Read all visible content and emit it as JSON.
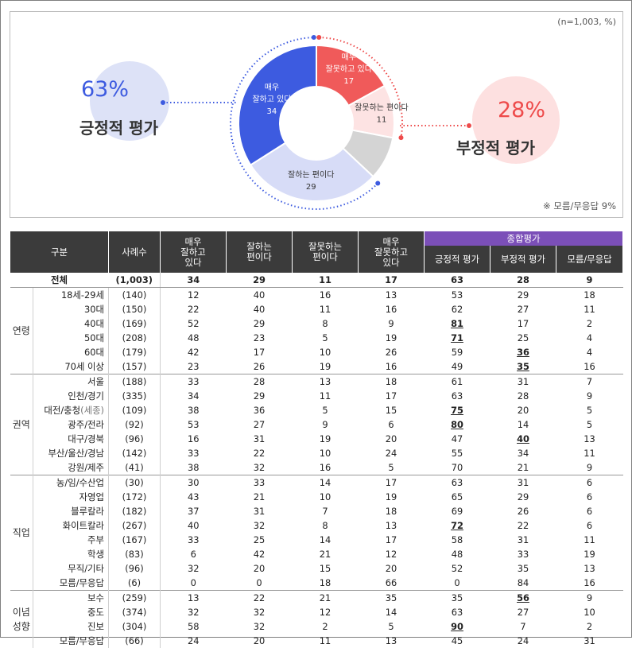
{
  "chart_data": [
    {
      "type": "pie",
      "categories": [
        "매우 잘못하고 있다",
        "잘못하는 편이다",
        "모름/무응답",
        "잘하는 편이다",
        "매우 잘하고 있다"
      ],
      "values": [
        17,
        11,
        9,
        29,
        34
      ],
      "slice_labels": [
        {
          "lines": [
            "매우",
            "잘못하고 있다",
            "17"
          ]
        },
        {
          "lines": [
            "잘못하는 편이다",
            "11"
          ]
        },
        {
          "lines": []
        },
        {
          "lines": [
            "잘하는 편이다",
            "29"
          ]
        },
        {
          "lines": [
            "매우",
            "잘하고 있다",
            "34"
          ]
        }
      ],
      "colors": [
        "#f05a5a",
        "#fde3e3",
        "#d4d4d4",
        "#d7dcf7",
        "#3d5be0"
      ],
      "summary": {
        "positive": {
          "pct": "63%",
          "label": "긍정적 평가",
          "color": "#3d5be0",
          "bubble": "#dde2f7"
        },
        "negative": {
          "pct": "28%",
          "label": "부정적 평가",
          "color": "#ee4b4b",
          "bubble": "#fde0e0"
        }
      },
      "note_n": "(n=1,003, %)",
      "note_dk": "※ 모름/무응답 9%"
    },
    {
      "type": "table",
      "header": {
        "group": "구분",
        "n": "사례수",
        "cols": [
          "매우\n잘하고\n있다",
          "잘하는\n편이다",
          "잘못하는\n편이다",
          "매우\n잘못하고\n있다"
        ],
        "summary_title": "종합평가",
        "summary_cols": [
          "긍정적 평가",
          "부정적 평가",
          "모름/무응답"
        ]
      },
      "total": {
        "label": "전체",
        "n": "(1,003)",
        "v": [
          "34",
          "29",
          "11",
          "17",
          "63",
          "28",
          "9"
        ]
      },
      "groups": [
        {
          "name": "연령",
          "rows": [
            {
              "label": "18세-29세",
              "n": "(140)",
              "v": [
                "12",
                "40",
                "16",
                "13",
                "53",
                "29",
                "18"
              ],
              "u": []
            },
            {
              "label": "30대",
              "n": "(150)",
              "v": [
                "22",
                "40",
                "11",
                "16",
                "62",
                "27",
                "11"
              ],
              "u": []
            },
            {
              "label": "40대",
              "n": "(169)",
              "v": [
                "52",
                "29",
                "8",
                "9",
                "81",
                "17",
                "2"
              ],
              "u": [
                4
              ]
            },
            {
              "label": "50대",
              "n": "(208)",
              "v": [
                "48",
                "23",
                "5",
                "19",
                "71",
                "25",
                "4"
              ],
              "u": [
                4
              ]
            },
            {
              "label": "60대",
              "n": "(179)",
              "v": [
                "42",
                "17",
                "10",
                "26",
                "59",
                "36",
                "4"
              ],
              "u": [
                5
              ]
            },
            {
              "label": "70세 이상",
              "n": "(157)",
              "v": [
                "23",
                "26",
                "19",
                "16",
                "49",
                "35",
                "16"
              ],
              "u": [
                5
              ]
            }
          ]
        },
        {
          "name": "권역",
          "rows": [
            {
              "label": "서울",
              "n": "(188)",
              "v": [
                "33",
                "28",
                "13",
                "18",
                "61",
                "31",
                "7"
              ],
              "u": []
            },
            {
              "label": "인천/경기",
              "n": "(335)",
              "v": [
                "34",
                "29",
                "11",
                "17",
                "63",
                "28",
                "9"
              ],
              "u": []
            },
            {
              "label": "대전/충청",
              "label_suffix": "(세종)",
              "n": "(109)",
              "v": [
                "38",
                "36",
                "5",
                "15",
                "75",
                "20",
                "5"
              ],
              "u": [
                4
              ]
            },
            {
              "label": "광주/전라",
              "n": "(92)",
              "v": [
                "53",
                "27",
                "9",
                "6",
                "80",
                "14",
                "5"
              ],
              "u": [
                4
              ]
            },
            {
              "label": "대구/경북",
              "n": "(96)",
              "v": [
                "16",
                "31",
                "19",
                "20",
                "47",
                "40",
                "13"
              ],
              "u": [
                5
              ]
            },
            {
              "label": "부산/울산/경남",
              "n": "(142)",
              "v": [
                "33",
                "22",
                "10",
                "24",
                "55",
                "34",
                "11"
              ],
              "u": []
            },
            {
              "label": "강원/제주",
              "n": "(41)",
              "v": [
                "38",
                "32",
                "16",
                "5",
                "70",
                "21",
                "9"
              ],
              "u": []
            }
          ]
        },
        {
          "name": "직업",
          "rows": [
            {
              "label": "농/임/수산업",
              "n": "(30)",
              "v": [
                "30",
                "33",
                "14",
                "17",
                "63",
                "31",
                "6"
              ],
              "u": []
            },
            {
              "label": "자영업",
              "n": "(172)",
              "v": [
                "43",
                "21",
                "10",
                "19",
                "65",
                "29",
                "6"
              ],
              "u": []
            },
            {
              "label": "블루칼라",
              "n": "(182)",
              "v": [
                "37",
                "31",
                "7",
                "18",
                "69",
                "26",
                "6"
              ],
              "u": []
            },
            {
              "label": "화이트칼라",
              "n": "(267)",
              "v": [
                "40",
                "32",
                "8",
                "13",
                "72",
                "22",
                "6"
              ],
              "u": [
                4
              ]
            },
            {
              "label": "주부",
              "n": "(167)",
              "v": [
                "33",
                "25",
                "14",
                "17",
                "58",
                "31",
                "11"
              ],
              "u": []
            },
            {
              "label": "학생",
              "n": "(83)",
              "v": [
                "6",
                "42",
                "21",
                "12",
                "48",
                "33",
                "19"
              ],
              "u": []
            },
            {
              "label": "무직/기타",
              "n": "(96)",
              "v": [
                "32",
                "20",
                "15",
                "20",
                "52",
                "35",
                "13"
              ],
              "u": []
            },
            {
              "label": "모름/무응답",
              "n": "(6)",
              "v": [
                "0",
                "0",
                "18",
                "66",
                "0",
                "84",
                "16"
              ],
              "u": []
            }
          ]
        },
        {
          "name": "이념\n성향",
          "rows": [
            {
              "label": "보수",
              "n": "(259)",
              "v": [
                "13",
                "22",
                "21",
                "35",
                "35",
                "56",
                "9"
              ],
              "u": [
                5
              ]
            },
            {
              "label": "중도",
              "n": "(374)",
              "v": [
                "32",
                "32",
                "12",
                "14",
                "63",
                "27",
                "10"
              ],
              "u": []
            },
            {
              "label": "진보",
              "n": "(304)",
              "v": [
                "58",
                "32",
                "2",
                "5",
                "90",
                "7",
                "2"
              ],
              "u": [
                4
              ]
            },
            {
              "label": "모름/무응답",
              "n": "(66)",
              "v": [
                "24",
                "20",
                "11",
                "13",
                "45",
                "24",
                "31"
              ],
              "u": []
            }
          ]
        }
      ]
    }
  ]
}
